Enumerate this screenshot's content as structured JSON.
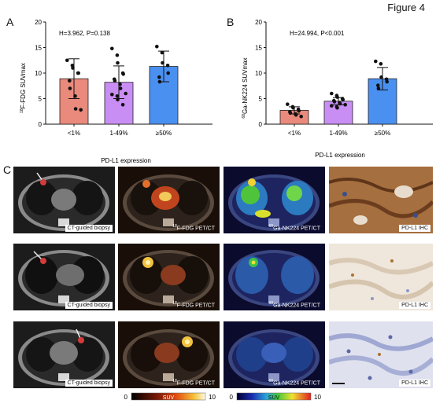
{
  "figure_title": "Figure 4",
  "panels": {
    "a": "A",
    "b": "B",
    "c": "C"
  },
  "chart_data": [
    {
      "type": "bar",
      "panel": "A",
      "categories": [
        "<1%",
        "1-49%",
        "≥50%"
      ],
      "values": [
        8.9,
        8.2,
        11.3
      ],
      "error": [
        3.9,
        3.2,
        3.0
      ],
      "colors": [
        "#e98a7c",
        "#c98ef3",
        "#4a90f0"
      ],
      "points": [
        [
          12.5,
          11.5,
          11.0,
          10.0,
          10.0,
          8.5,
          7.0,
          5.5,
          3.0,
          2.8
        ],
        [
          14.8,
          13.5,
          12.0,
          10.0,
          9.8,
          8.8,
          8.5,
          7.8,
          7.0,
          6.0,
          5.8,
          5.5,
          4.8,
          3.8
        ],
        [
          15.2,
          14.0,
          12.0,
          11.5,
          10.0,
          9.2,
          8.3
        ]
      ],
      "ylabel_iso": "18",
      "ylabel": "F-FDG SUVmax",
      "xlabel": "PD-L1 expression",
      "annotation": "H=3.962, P=0.138",
      "ylim": [
        0,
        20
      ],
      "yticks": [
        "0",
        "5",
        "10",
        "15",
        "20"
      ]
    },
    {
      "type": "bar",
      "panel": "B",
      "categories": [
        "<1%",
        "1-49%",
        "≥50%"
      ],
      "values": [
        2.7,
        4.5,
        8.9
      ],
      "error": [
        0.7,
        0.7,
        2.2
      ],
      "colors": [
        "#e98a7c",
        "#c98ef3",
        "#4a90f0"
      ],
      "points": [
        [
          3.9,
          3.4,
          3.2,
          2.9,
          2.6,
          2.4,
          2.2,
          2.0,
          1.8,
          1.5
        ],
        [
          6.0,
          5.6,
          5.3,
          5.0,
          4.8,
          4.6,
          4.4,
          4.2,
          4.0,
          3.8,
          3.6,
          3.4,
          3.2
        ],
        [
          12.3,
          11.8,
          9.2,
          8.8,
          8.3,
          7.6,
          7.0
        ]
      ],
      "ylabel_iso": "68",
      "ylabel": "Ga-NK224 SUVmax",
      "xlabel": "PD-L1 expression",
      "annotation": "H=24.994, P<0.001",
      "ylim": [
        0,
        20
      ],
      "yticks": [
        "0",
        "5",
        "10",
        "15",
        "20"
      ]
    }
  ],
  "image_panel": {
    "captions": {
      "ct": "CT-guided biopsy",
      "fdg_iso": "18",
      "fdg": "F-FDG PET/CT",
      "nk_iso": "68",
      "nk": "Ga-NK224 PET/CT",
      "ihc": "PD-L1 IHC"
    },
    "colorbar_fdg": {
      "min": "0",
      "label": "SUV",
      "max": "10"
    },
    "colorbar_nk": {
      "min": "0",
      "label": "SUV",
      "max": "10"
    }
  }
}
